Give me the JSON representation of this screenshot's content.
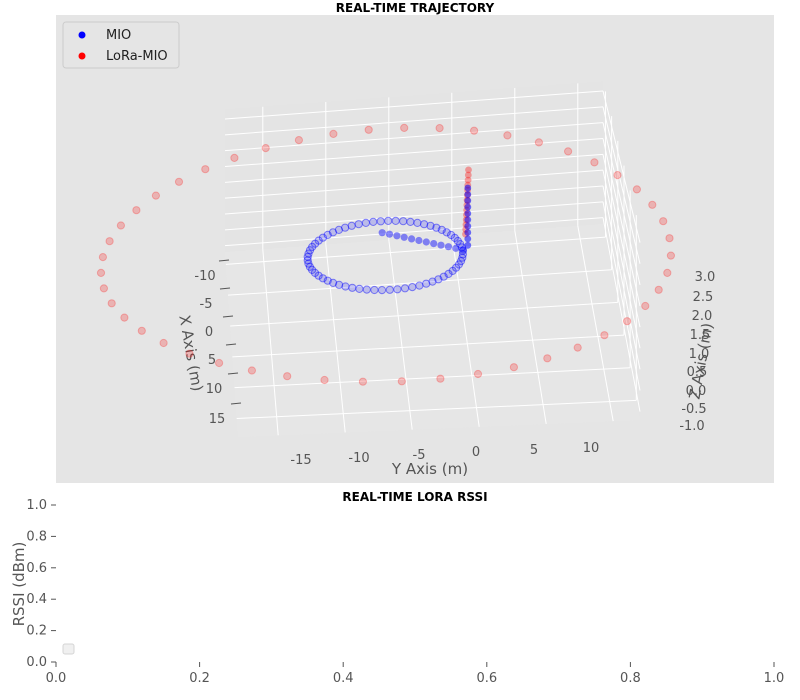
{
  "chart_data": [
    {
      "type": "scatter",
      "title": "REAL-TIME TRAJECTORY",
      "xlabel": "X Axis (m)",
      "ylabel": "Y Axis (m)",
      "zlabel": "Z Axis (m)",
      "x_ticks": [
        "-10",
        "-5",
        "0",
        "5",
        "10",
        "15"
      ],
      "y_ticks": [
        "-15",
        "-10",
        "-5",
        "0",
        "5",
        "10"
      ],
      "z_ticks": [
        "3.0",
        "2.5",
        "2.0",
        "1.5",
        "1.0",
        "0.5",
        "0.0",
        "-0.5",
        "-1.0"
      ],
      "grid": true,
      "legend_placement": "top-left",
      "series": [
        {
          "name": "MIO",
          "color": "#0000ff",
          "description_of_points": "roughly circular loop of radius ~6 m centered near y=-6, plus a short line segment converging at a cluster",
          "loop_center_xy": [
            0,
            -6
          ],
          "loop_radius": 6,
          "z": 0.5
        },
        {
          "name": "LoRa-MIO",
          "color": "#ff0000",
          "loop_center_xy": [
            0,
            -6
          ],
          "loop_radius": 22,
          "z": 0.5
        }
      ]
    },
    {
      "type": "line",
      "title": "REAL-TIME LORA RSSI",
      "xlabel": "",
      "ylabel": "RSSI (dBm)",
      "xlim": [
        0,
        1
      ],
      "ylim": [
        0,
        1
      ],
      "x_ticks": [
        "0.0",
        "0.2",
        "0.4",
        "0.6",
        "0.8",
        "1.0"
      ],
      "y_ticks": [
        "0.0",
        "0.2",
        "0.4",
        "0.6",
        "0.8",
        "1.0"
      ],
      "grid": false,
      "legend_placement": "bottom-left",
      "series": []
    }
  ]
}
